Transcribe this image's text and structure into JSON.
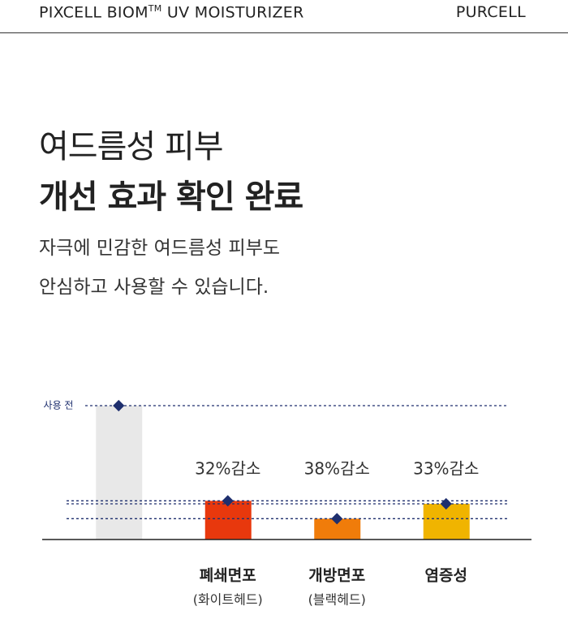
{
  "header": {
    "product_name": "PIXCELL BIOM",
    "trademark": "TM",
    "product_suffix": "UV MOISTURIZER",
    "brand": "PURCELL"
  },
  "headline": {
    "line1": "여드름성 피부",
    "line2": "개선 효과 확인 완료"
  },
  "description": {
    "line1": "자극에 민감한 여드름성 피부도",
    "line2": "안심하고 사용할 수 있습니다."
  },
  "chart_data": {
    "type": "bar",
    "reference_label": "사용 전",
    "categories": [
      null,
      "폐쇄면포",
      "개방면포",
      "염증성"
    ],
    "sublabels": [
      null,
      "(화이트헤드)",
      "(블랙헤드)",
      null
    ],
    "annotations": [
      null,
      "32%감소",
      "38%감소",
      "33%감소"
    ],
    "values": [
      100,
      68,
      62,
      67
    ],
    "colors": [
      "#e8e8e8",
      "#e8380d",
      "#f07c0a",
      "#f0b400"
    ],
    "marker_color": "#1e2f6e",
    "ylim": [
      55,
      100
    ]
  }
}
